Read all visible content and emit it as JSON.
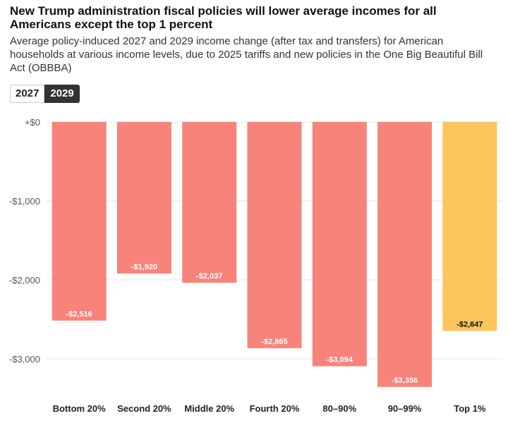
{
  "title": "New Trump administration fiscal policies will lower average incomes for all Americans except the top 1 percent",
  "subtitle": "Average policy-induced 2027 and 2029 income change (after tax and transfers) for American households at various income levels, due to 2025 tariffs and new policies in the One Big Beautiful Bill Act (OBBBA)",
  "toggle": {
    "options": [
      "2027",
      "2029"
    ],
    "selected": "2029"
  },
  "colors": {
    "loss": "#f8837a",
    "top": "#fcc55e",
    "grid": "#e6e6e6",
    "axis_text": "#555555",
    "toggle_active": "#333333"
  },
  "chart_data": {
    "type": "bar",
    "categories": [
      "Bottom 20%",
      "Second 20%",
      "Middle 20%",
      "Fourth 20%",
      "80–90%",
      "90–99%",
      "Top 1%"
    ],
    "values": [
      -2516,
      -1920,
      -2037,
      -2865,
      -3094,
      -3356,
      -2647
    ],
    "data_labels": [
      "-$2,516",
      "-$1,920",
      "-$2,037",
      "-$2,865",
      "-$3,094",
      "-$3,356",
      "-$2,647"
    ],
    "ylim": [
      -3500,
      0
    ],
    "yticks": [
      0,
      -1000,
      -2000,
      -3000
    ],
    "ytick_labels": [
      "+$0",
      "-$1,000",
      "-$2,000",
      "-$3,000"
    ],
    "xlabel": "",
    "ylabel": "",
    "grid": true
  }
}
